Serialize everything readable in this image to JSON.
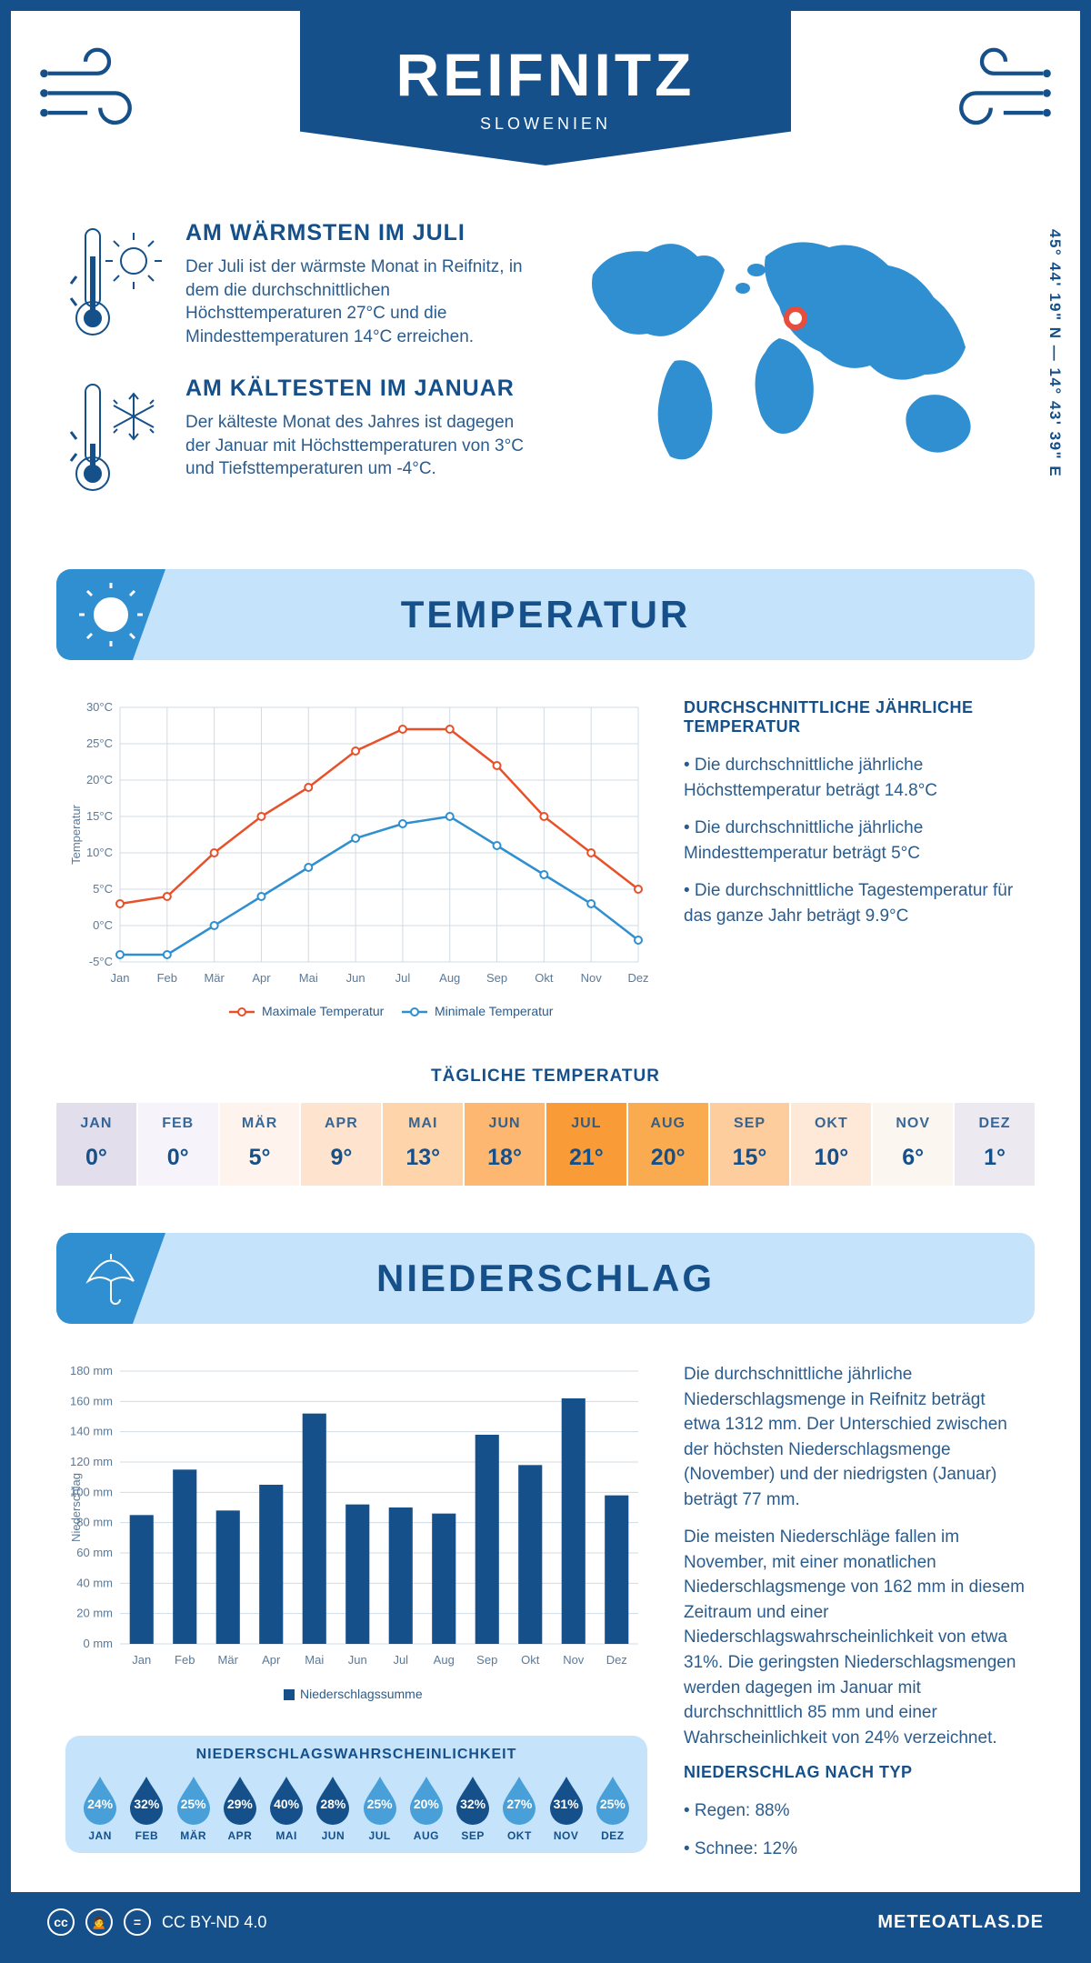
{
  "header": {
    "city": "REIFNITZ",
    "country": "SLOWENIEN"
  },
  "coords": "45° 44' 19\" N — 14° 43' 39\" E",
  "world_marker": {
    "left_pct": 48,
    "top_pct": 34
  },
  "intro_warm": {
    "title": "AM WÄRMSTEN IM JULI",
    "text": "Der Juli ist der wärmste Monat in Reifnitz, in dem die durchschnittlichen Höchsttemperaturen 27°C und die Mindesttemperaturen 14°C erreichen."
  },
  "intro_cold": {
    "title": "AM KÄLTESTEN IM JANUAR",
    "text": "Der kälteste Monat des Jahres ist dagegen der Januar mit Höchsttemperaturen von 3°C und Tiefsttemperaturen um -4°C."
  },
  "section_temp": "TEMPERATUR",
  "section_precip": "NIEDERSCHLAG",
  "months": [
    "Jan",
    "Feb",
    "Mär",
    "Apr",
    "Mai",
    "Jun",
    "Jul",
    "Aug",
    "Sep",
    "Okt",
    "Nov",
    "Dez"
  ],
  "months_upper": [
    "JAN",
    "FEB",
    "MÄR",
    "APR",
    "MAI",
    "JUN",
    "JUL",
    "AUG",
    "SEP",
    "OKT",
    "NOV",
    "DEZ"
  ],
  "temp_chart": {
    "type": "line",
    "ylabel": "Temperatur",
    "y_ticks": [
      -5,
      0,
      5,
      10,
      15,
      20,
      25,
      30
    ],
    "y_tick_labels": [
      "-5°C",
      "0°C",
      "5°C",
      "10°C",
      "15°C",
      "20°C",
      "25°C",
      "30°C"
    ],
    "ylim": [
      -5,
      30
    ],
    "max_series": {
      "label": "Maximale Temperatur",
      "color": "#e8502a",
      "values": [
        3,
        4,
        10,
        15,
        19,
        24,
        27,
        27,
        22,
        15,
        10,
        5
      ]
    },
    "min_series": {
      "label": "Minimale Temperatur",
      "color": "#2f8fd0",
      "values": [
        -4,
        -4,
        0,
        4,
        8,
        12,
        14,
        15,
        11,
        7,
        3,
        -2
      ]
    },
    "grid_color": "#d0dbe6",
    "background_color": "#ffffff"
  },
  "temp_info": {
    "title": "DURCHSCHNITTLICHE JÄHRLICHE TEMPERATUR",
    "b1": "• Die durchschnittliche jährliche Höchsttemperatur beträgt 14.8°C",
    "b2": "• Die durchschnittliche jährliche Mindesttemperatur beträgt 5°C",
    "b3": "• Die durchschnittliche Tagestemperatur für das ganze Jahr beträgt 9.9°C"
  },
  "daily_temp": {
    "title": "TÄGLICHE TEMPERATUR",
    "values": [
      0,
      0,
      5,
      9,
      13,
      18,
      21,
      20,
      15,
      10,
      6,
      1
    ],
    "labels": [
      "0°",
      "0°",
      "5°",
      "9°",
      "13°",
      "18°",
      "21°",
      "20°",
      "15°",
      "10°",
      "6°",
      "1°"
    ],
    "bg_colors": [
      "#e3deec",
      "#f6f4fa",
      "#fff4ed",
      "#fee4cf",
      "#fed4ab",
      "#fdb771",
      "#f99b37",
      "#faab50",
      "#fecd9d",
      "#fee9d9",
      "#fcf6f1",
      "#ece9f1"
    ]
  },
  "precip_chart": {
    "type": "bar",
    "ylabel": "Niederschlag",
    "y_ticks": [
      0,
      20,
      40,
      60,
      80,
      100,
      120,
      140,
      160,
      180
    ],
    "y_tick_labels": [
      "0 mm",
      "20 mm",
      "40 mm",
      "60 mm",
      "80 mm",
      "100 mm",
      "120 mm",
      "140 mm",
      "160 mm",
      "180 mm"
    ],
    "ylim": [
      0,
      180
    ],
    "values": [
      85,
      115,
      88,
      105,
      152,
      92,
      90,
      86,
      138,
      118,
      162,
      98
    ],
    "bar_color": "#15508a",
    "legend": "Niederschlagssumme",
    "grid_color": "#d0dbe6"
  },
  "precip_prob": {
    "title": "NIEDERSCHLAGSWAHRSCHEINLICHKEIT",
    "values": [
      24,
      32,
      25,
      29,
      40,
      28,
      25,
      20,
      32,
      27,
      31,
      25
    ],
    "labels": [
      "24%",
      "32%",
      "25%",
      "29%",
      "40%",
      "28%",
      "25%",
      "20%",
      "32%",
      "27%",
      "31%",
      "25%"
    ],
    "color_light": "#49a0d8",
    "color_dark": "#15508a"
  },
  "precip_info": {
    "p1": "Die durchschnittliche jährliche Niederschlagsmenge in Reifnitz beträgt etwa 1312 mm. Der Unterschied zwischen der höchsten Niederschlagsmenge (November) und der niedrigsten (Januar) beträgt 77 mm.",
    "p2": "Die meisten Niederschläge fallen im November, mit einer monatlichen Niederschlagsmenge von 162 mm in diesem Zeitraum und einer Niederschlagswahrscheinlichkeit von etwa 31%. Die geringsten Niederschlagsmengen werden dagegen im Januar mit durchschnittlich 85 mm und einer Wahrscheinlichkeit von 24% verzeichnet.",
    "type_title": "NIEDERSCHLAG NACH TYP",
    "t1": "• Regen: 88%",
    "t2": "• Schnee: 12%"
  },
  "footer": {
    "license": "CC BY-ND 4.0",
    "brand": "METEOATLAS.DE"
  }
}
